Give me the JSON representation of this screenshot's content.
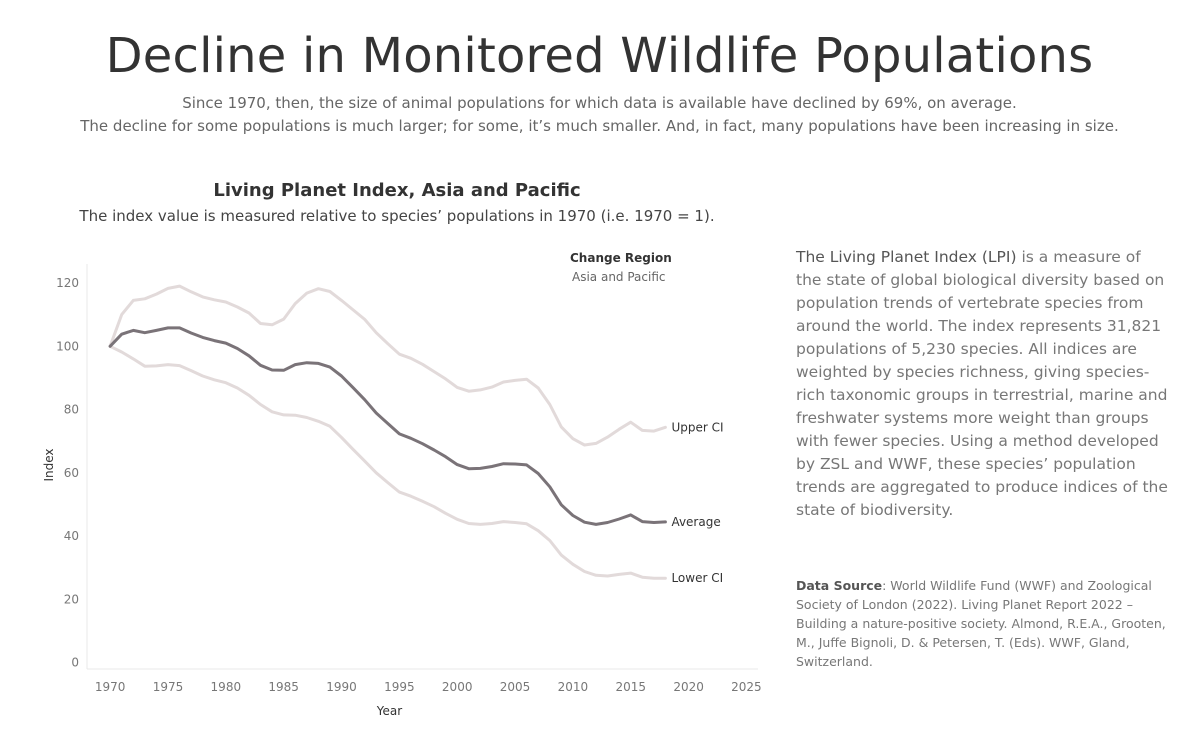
{
  "header": {
    "title": "Decline in Monitored Wildlife Populations",
    "subtitle_line1": "Since 1970, then, the size of animal populations for which data is available have declined by 69%, on average.",
    "subtitle_line2": "The decline for some populations is much larger; for some, it’s much smaller. And, in fact, many populations have been increasing in size."
  },
  "legend": {
    "title": "Change Region",
    "item": "Asia and Pacific"
  },
  "description": {
    "lead": "The Living Planet Index (LPI)",
    "body": " is a measure of the state of global biological diversity based on population trends of vertebrate species from around the world. The index represents 31,821 populations of 5,230 species. All indices are weighted by species richness, giving species-rich taxonomic groups in terrestrial, marine and freshwater systems more weight than groups with fewer species. Using a method developed by ZSL and WWF, these species’ population trends are aggregated to produce indices of the state of biodiversity."
  },
  "source": {
    "lead": "Data Source",
    "body": ": World Wildlife Fund (WWF) and Zoological Society of London (2022). Living Planet Report 2022 – Building a nature-positive society. Almond, R.E.A., Grooten, M., Juffe Bignoli, D. & Petersen, T. (Eds). WWF, Gland, Switzerland."
  },
  "colors": {
    "average": "#7a7378",
    "ci": "#e2dada",
    "axis": "#e8e8e8"
  },
  "chart_data": {
    "type": "line",
    "title": "Living Planet Index, Asia and Pacific",
    "subtitle": "The index value is measured relative to species’ populations in 1970 (i.e. 1970 = 1).",
    "xlabel": "Year",
    "ylabel": "Index",
    "xlim": [
      1968,
      2026
    ],
    "ylim": [
      -2,
      126
    ],
    "xticks": [
      1970,
      1975,
      1980,
      1985,
      1990,
      1995,
      2000,
      2005,
      2010,
      2015,
      2020,
      2025
    ],
    "yticks": [
      0,
      20,
      40,
      60,
      80,
      100,
      120
    ],
    "grid": false,
    "legend_position": "top-right",
    "x": [
      1970,
      1971,
      1972,
      1973,
      1974,
      1975,
      1976,
      1977,
      1978,
      1979,
      1980,
      1981,
      1982,
      1983,
      1984,
      1985,
      1986,
      1987,
      1988,
      1989,
      1990,
      1991,
      1992,
      1993,
      1994,
      1995,
      1996,
      1997,
      1998,
      1999,
      2000,
      2001,
      2002,
      2003,
      2004,
      2005,
      2006,
      2007,
      2008,
      2009,
      2010,
      2011,
      2012,
      2013,
      2014,
      2015,
      2016,
      2017,
      2018
    ],
    "series": [
      {
        "name": "Upper CI",
        "values": [
          100,
          110,
          114.5,
          115,
          116.5,
          118.3,
          119,
          117.2,
          115.6,
          114.7,
          114,
          112.4,
          110.5,
          107.2,
          106.8,
          108.6,
          113.5,
          116.8,
          118.2,
          117.3,
          114.5,
          111.5,
          108.5,
          104.3,
          100.8,
          97.5,
          96.2,
          94.3,
          92,
          89.7,
          87,
          85.8,
          86.2,
          87.1,
          88.7,
          89.2,
          89.6,
          86.8,
          81.6,
          74.5,
          70.8,
          68.8,
          69.3,
          71.3,
          73.8,
          76,
          73.4,
          73.2,
          74.4
        ]
      },
      {
        "name": "Average",
        "values": [
          100,
          103.8,
          105,
          104.3,
          105,
          105.8,
          105.8,
          104.2,
          102.8,
          101.8,
          101,
          99.3,
          97,
          94,
          92.5,
          92.4,
          94.2,
          94.8,
          94.6,
          93.4,
          90.6,
          86.9,
          83.1,
          78.9,
          75.6,
          72.3,
          70.9,
          69.2,
          67.2,
          65.1,
          62.6,
          61.3,
          61.4,
          62,
          62.9,
          62.8,
          62.5,
          59.8,
          55.6,
          49.9,
          46.5,
          44.4,
          43.7,
          44.3,
          45.4,
          46.7,
          44.6,
          44.3,
          44.5
        ]
      },
      {
        "name": "Lower CI",
        "values": [
          100,
          98.2,
          96,
          93.7,
          93.8,
          94.2,
          93.9,
          92.3,
          90.6,
          89.4,
          88.5,
          86.8,
          84.5,
          81.6,
          79.3,
          78.3,
          78.2,
          77.5,
          76.3,
          74.7,
          71.2,
          67.4,
          63.7,
          60,
          56.9,
          53.9,
          52.6,
          51,
          49.3,
          47.2,
          45.3,
          44,
          43.7,
          44,
          44.6,
          44.3,
          43.9,
          41.7,
          38.6,
          34,
          31.1,
          28.8,
          27.6,
          27.4,
          27.9,
          28.3,
          27,
          26.7,
          26.7
        ]
      }
    ]
  }
}
